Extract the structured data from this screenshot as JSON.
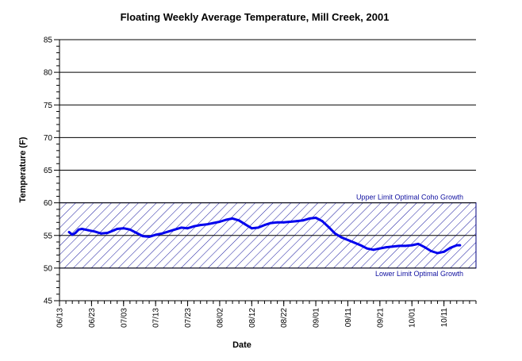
{
  "chart_data": {
    "type": "line",
    "title": "Floating Weekly Average Temperature, Mill Creek, 2001",
    "xlabel": "Date",
    "ylabel": "Temperature (F)",
    "ylim": [
      45,
      85
    ],
    "yticks": [
      45,
      50,
      55,
      60,
      65,
      70,
      75,
      80,
      85
    ],
    "xlim": [
      "2001-06-13",
      "2001-10-21"
    ],
    "xticks": [
      "06/13",
      "06/23",
      "07/03",
      "07/13",
      "07/23",
      "08/02",
      "08/12",
      "08/22",
      "09/01",
      "09/11",
      "09/21",
      "10/01",
      "10/11"
    ],
    "grid": "horizontal",
    "colors": {
      "line": "#0000ee",
      "band_border": "#000080",
      "band_hatch": "#1a1aa0",
      "band_label": "#1010a0",
      "grid": "#000000"
    },
    "bands": [
      {
        "lower": 50,
        "upper": 60,
        "upper_label": "Upper Limit Optimal Coho Growth",
        "lower_label": "Lower Limit Optimal Growth"
      }
    ],
    "series": [
      {
        "x": [
          "2001-06-16",
          "2001-06-17",
          "2001-06-18",
          "2001-06-19",
          "2001-06-20",
          "2001-06-22",
          "2001-06-24",
          "2001-06-26",
          "2001-06-28",
          "2001-06-30",
          "2001-07-01",
          "2001-07-03",
          "2001-07-05",
          "2001-07-07",
          "2001-07-09",
          "2001-07-11",
          "2001-07-13",
          "2001-07-15",
          "2001-07-17",
          "2001-07-19",
          "2001-07-21",
          "2001-07-23",
          "2001-07-25",
          "2001-07-27",
          "2001-07-29",
          "2001-07-31",
          "2001-08-02",
          "2001-08-04",
          "2001-08-06",
          "2001-08-08",
          "2001-08-10",
          "2001-08-12",
          "2001-08-14",
          "2001-08-16",
          "2001-08-18",
          "2001-08-20",
          "2001-08-22",
          "2001-08-24",
          "2001-08-26",
          "2001-08-28",
          "2001-08-30",
          "2001-09-01",
          "2001-09-03",
          "2001-09-05",
          "2001-09-07",
          "2001-09-09",
          "2001-09-11",
          "2001-09-13",
          "2001-09-15",
          "2001-09-17",
          "2001-09-19",
          "2001-09-21",
          "2001-09-23",
          "2001-09-25",
          "2001-09-27",
          "2001-09-29",
          "2001-10-01",
          "2001-10-03",
          "2001-10-05",
          "2001-10-07",
          "2001-10-09",
          "2001-10-11",
          "2001-10-13",
          "2001-10-15",
          "2001-10-16"
        ],
        "y": [
          55.5,
          55.1,
          55.4,
          55.9,
          56.0,
          55.8,
          55.6,
          55.3,
          55.4,
          55.8,
          56.0,
          56.1,
          55.9,
          55.4,
          54.9,
          54.8,
          55.1,
          55.3,
          55.6,
          55.9,
          56.2,
          56.1,
          56.4,
          56.6,
          56.7,
          56.9,
          57.1,
          57.4,
          57.6,
          57.3,
          56.7,
          56.1,
          56.2,
          56.6,
          56.9,
          57.0,
          57.0,
          57.1,
          57.2,
          57.3,
          57.6,
          57.7,
          57.2,
          56.3,
          55.3,
          54.7,
          54.3,
          53.9,
          53.5,
          53.0,
          52.8,
          53.0,
          53.2,
          53.3,
          53.4,
          53.4,
          53.5,
          53.7,
          53.2,
          52.6,
          52.3,
          52.5,
          53.1,
          53.5,
          53.5
        ]
      }
    ]
  }
}
